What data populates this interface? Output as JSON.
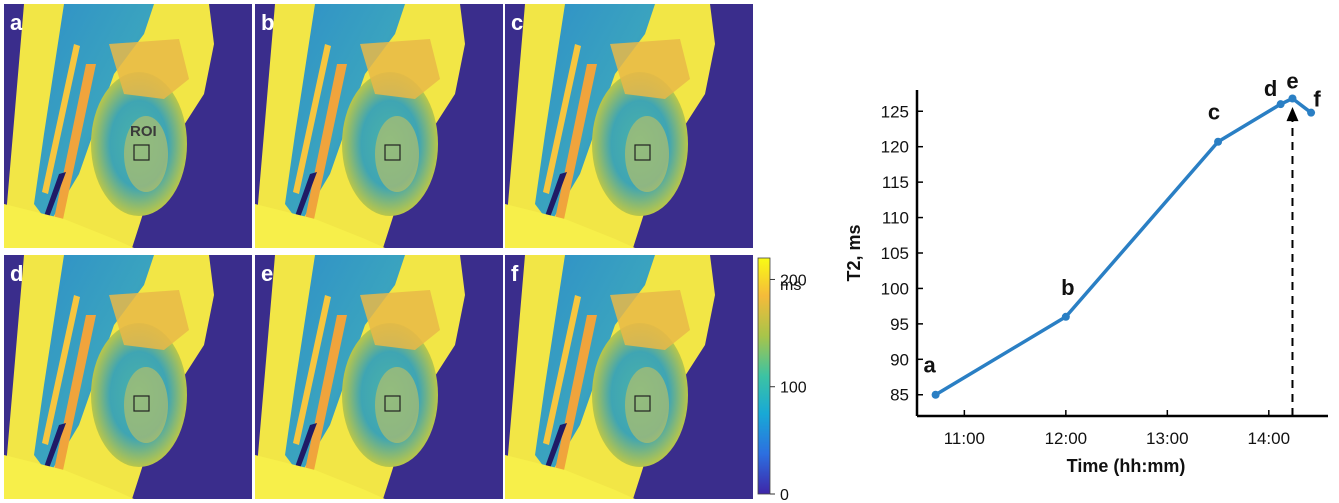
{
  "panels": [
    {
      "letter": "a",
      "roi_label": "ROI"
    },
    {
      "letter": "b",
      "roi_label": ""
    },
    {
      "letter": "c",
      "roi_label": ""
    },
    {
      "letter": "d",
      "roi_label": ""
    },
    {
      "letter": "e",
      "roi_label": ""
    },
    {
      "letter": "f",
      "roi_label": ""
    }
  ],
  "colorbar": {
    "ticks": [
      "200",
      "100",
      "0"
    ],
    "tick_values": [
      200,
      100,
      0
    ],
    "unit": "ms",
    "range": [
      0,
      220
    ],
    "colormap": [
      "#3e26a8",
      "#2c6fe0",
      "#18a9d6",
      "#3cc3a3",
      "#a8c44a",
      "#f5bb3a",
      "#f9fb15"
    ]
  },
  "colors": {
    "background_mask": "#3a2d8c",
    "tissue_yellow": "#f2e646",
    "series_line": "#2a7fc4"
  },
  "chart_data": {
    "type": "line",
    "title": "",
    "xlabel": "Time (hh:mm)",
    "ylabel": "T2, ms",
    "x_tick_labels": [
      "11:00",
      "12:00",
      "13:00",
      "14:00"
    ],
    "x_tick_values": [
      "11:00",
      "12:00",
      "13:00",
      "14:00"
    ],
    "y_tick_values": [
      85,
      90,
      95,
      100,
      105,
      110,
      115,
      120,
      125
    ],
    "xlim": [
      "10:32",
      "14:35"
    ],
    "ylim": [
      82,
      128
    ],
    "grid": false,
    "series": [
      {
        "x": [
          "10:43",
          "12:00",
          "13:30",
          "14:07",
          "14:14",
          "14:25"
        ],
        "y": [
          85.0,
          96.0,
          120.7,
          126.0,
          126.8,
          124.8
        ],
        "labels": [
          "a",
          "b",
          "c",
          "d",
          "e",
          "f"
        ]
      }
    ],
    "marker_line_time": "14:14"
  }
}
